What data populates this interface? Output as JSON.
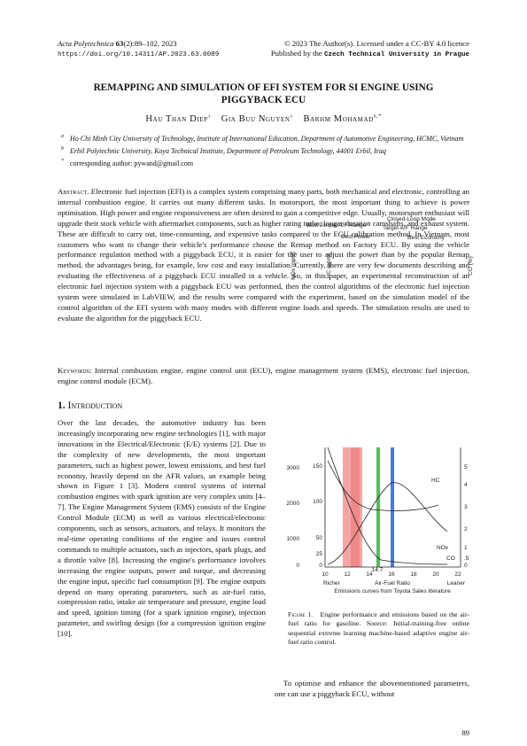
{
  "header": {
    "journal": "Acta Polytechnica",
    "volume": "63",
    "issue_pages": "(2):89–102, 2023",
    "doi": "https://doi.org/10.14311/AP.2023.63.0089",
    "license": "© 2023 The Author(s). Licensed under a CC-BY 4.0 licence",
    "publisher_prefix": "Published by the",
    "publisher": "Czech Technical University in Prague"
  },
  "title": "REMAPPING AND SIMULATION OF EFI SYSTEM FOR SI ENGINE USING PIGGYBACK ECU",
  "authors": [
    {
      "name": "Hau Than Diep",
      "sup": "a"
    },
    {
      "name": "Gia Buu Nguyen",
      "sup": "a"
    },
    {
      "name": "Barhm Mohamad",
      "sup": "b,*"
    }
  ],
  "affiliations": [
    {
      "mark": "a",
      "text": "Ho Chi Minh City University of Technology, Institute of International Education, Department of Automotive Engineering, HCMC, Vietnam"
    },
    {
      "mark": "b",
      "text": "Erbil Polytechnic University, Koya Technical Institute, Department of Petroleum Technology, 44001 Erbil, Iraq"
    },
    {
      "mark": "*",
      "text": "corresponding author: pywand@gmail.com"
    }
  ],
  "abstract": {
    "label": "Abstract.",
    "text": "Electronic fuel injection (EFI) is a complex system comprising many parts, both mechanical and electronic, controlling an internal combustion engine. It carries out many different tasks. In motorsport, the most important thing to achieve is power optimisation. High power and engine responsiveness are often desired to gain a competitive edge. Usually, motorsport enthusiast will upgrade their stock vehicle with aftermarket components, such as higher rating turbo, longer duration camshafts, and exhaust system. These are difficult to carry out, time-consuming, and expensive tasks compared to the ECU calibration method. In Vietnam, most customers who want to change their vehicle's performance choose the Remap method on Factory ECU. By using the vehicle performance regulation method with a piggyback ECU, it is easier for the user to adjust the power than by the popular Remap method, the advantages being, for example, low cost and easy installation. Currently, there are very few documents describing and evaluating the effectiveness of a piggyback ECU installed in a vehicle. So, in this paper, an experimental reconstruction of an electronic fuel injection system with a piggyback ECU was performed, then the control algorithms of the electronic fuel injection system were simulated in LabVIEW, and the results were compared with the experiment, based on the simulation model of the control algorithm of the EFI system with many modes with different engine loads and speeds. The simulation results are used to evaluate the algorithm for the piggyback ECU."
  },
  "keywords": {
    "label": "Keywords:",
    "text": "Internal combustion engine, engine control unit (ECU), engine management system (EMS), electronic fuel injection, engine control module (ECM)."
  },
  "section": {
    "number": "1.",
    "title": "Introduction"
  },
  "body": {
    "left": "Over the last decades, the automotive industry has been increasingly incorporating new engine technologies [1], with major innovations in the Electrical/Electronic (E/E) systems [2]. Due to the complexity of new developments, the most important parameters, such as highest power, lowest emissions, and best fuel economy, heavily depend on the AFR values, an example being shown in Figure 1 [3]. Modern control systems of internal combustion engines with spark ignition are very complex units [4–7]. The Engine Management System (EMS) consists of the Engine Control Module (ECM) as well as various electrical/electronic components, such as sensors, actuators, and relays. It monitors the real-time operating conditions of the engine and issues control commands to multiple actuators, such as injectors, spark plugs, and a throttle valve [8]. Increasing the engine's performance involves increasing the engine outputs, power and torque, and decreasing the engine input, specific fuel consumption [9]. The engine outputs depend on many operating parameters, such as air-fuel ratio, compression ratio, intake air temperature and pressure, engine load and speed, ignition timing (for a spark ignition engine), injection parameter, and swirling design (for a compression ignition engine [10].",
    "right": "To optimise and enhance the abovementioned parameters, one can use a piggyback ECU, without"
  },
  "figure": {
    "best_torque": "Best Torque A/F Range",
    "closed_loop": "Closed-Loop Mode",
    "target": "Target A/F Range",
    "best_power": "Best Power",
    "best_economy": "Best Economy",
    "nox_axis": "NOx (ppm)",
    "hc_axis": "HC (ppm)",
    "co_axis": "CO (%)",
    "nox_ticks": [
      "3000",
      "2000",
      "1000",
      "0"
    ],
    "hc_ticks": [
      "150",
      "100",
      "50",
      "25",
      "0"
    ],
    "co_ticks": [
      "5",
      "4",
      "3",
      "2",
      "1",
      ".5",
      "0"
    ],
    "x_ticks": [
      "10",
      "12",
      "14",
      "16",
      "18",
      "20",
      "22"
    ],
    "stoich": "14.7",
    "richer": "Richer",
    "x_label": "Air-Fuel Ratio",
    "leaner": "Leaner",
    "source": "Emissions curves from Toyota Sales literature",
    "hc_curve": "HC",
    "nox_curve": "NOx",
    "co_curve": "CO",
    "caption_label": "Figure 1.",
    "caption": "Engine performance and emissions based on the air-fuel ratio for gasoline. Source: Initial-training-free online sequential extreme learning machine-based adaptive engine air-fuel ratio control."
  },
  "page_number": "89"
}
